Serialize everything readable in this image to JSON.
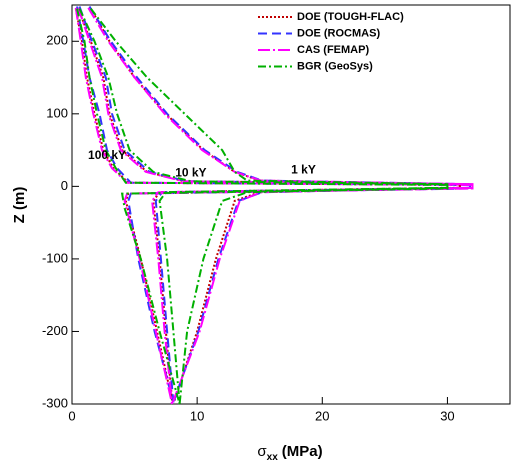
{
  "chart_data": {
    "type": "line",
    "x_label": {
      "symbol": "σ",
      "subscript": "xx",
      "unit": "(MPa)"
    },
    "y_label": "Z (m)",
    "xlim": [
      0,
      35
    ],
    "xticks": [
      0,
      10,
      20,
      30
    ],
    "ylim": [
      -300,
      250
    ],
    "yticks": [
      -300,
      -200,
      -100,
      0,
      100,
      200
    ],
    "annotations": [
      "100 kY",
      "10 kY",
      "1 kY"
    ],
    "legend": "upper-right",
    "series": [
      {
        "name": "DOE (TOUGH-FLAC)",
        "color": "#c00000",
        "dash": "2,2",
        "curves": [
          {
            "x": [
              1.5,
              3,
              5,
              7.5,
              10.5,
              13,
              15,
              31,
              31,
              15,
              13,
              11.5,
              10,
              8.2
            ],
            "y": [
              245,
              200,
              150,
              100,
              50,
              20,
              8,
              3,
              -2,
              -8,
              -20,
              -100,
              -200,
              -295
            ]
          },
          {
            "x": [
              0.5,
              1.5,
              2.5,
              3,
              4,
              6,
              9,
              31,
              31,
              7,
              6.5,
              7,
              7.5,
              8
            ],
            "y": [
              245,
              200,
              150,
              100,
              50,
              20,
              7,
              3,
              -2,
              -8,
              -20,
              -100,
              -200,
              -295
            ]
          },
          {
            "x": [
              0.3,
              0.8,
              1.2,
              1.8,
              2.5,
              3.3,
              4.5,
              31,
              31,
              4.5,
              4.3,
              5.5,
              6.8,
              8
            ],
            "y": [
              245,
              200,
              150,
              100,
              50,
              25,
              5,
              2,
              -3,
              -10,
              -20,
              -100,
              -200,
              -295
            ]
          }
        ]
      },
      {
        "name": "DOE (ROCMAS)",
        "color": "#3333ff",
        "dash": "9,5",
        "curves": [
          {
            "x": [
              1.4,
              3.1,
              5.2,
              7.6,
              10.6,
              13.2,
              15.2,
              31.8,
              31.8,
              15.2,
              13.3,
              11.7,
              10.1,
              8.1
            ],
            "y": [
              248,
              200,
              150,
              100,
              50,
              20,
              8,
              3,
              -2,
              -8,
              -20,
              -100,
              -200,
              -298
            ]
          },
          {
            "x": [
              0.6,
              1.6,
              2.7,
              3.2,
              4.2,
              6.2,
              9.2,
              31.8,
              31.8,
              7.2,
              6.7,
              7.1,
              7.6,
              8.1
            ],
            "y": [
              248,
              200,
              150,
              100,
              50,
              20,
              7,
              3,
              -2,
              -8,
              -20,
              -100,
              -200,
              -298
            ]
          },
          {
            "x": [
              0.4,
              0.9,
              1.4,
              2.2,
              2.8,
              3.6,
              4.7,
              31.8,
              31.8,
              4.7,
              4.5,
              5.3,
              6.6,
              8.1
            ],
            "y": [
              248,
              200,
              150,
              100,
              50,
              25,
              5,
              2,
              -3,
              -10,
              -20,
              -100,
              -200,
              -298
            ]
          }
        ]
      },
      {
        "name": "CAS (FEMAP)",
        "color": "#ff00ff",
        "dash": "12,3,2,3",
        "curves": [
          {
            "x": [
              1.3,
              2.9,
              5,
              7.4,
              10.4,
              13,
              15.1,
              32,
              32,
              15.1,
              13.4,
              11.8,
              10.2,
              8
            ],
            "y": [
              246,
              200,
              150,
              100,
              50,
              20,
              8,
              3,
              -2,
              -8,
              -20,
              -100,
              -200,
              -300
            ]
          },
          {
            "x": [
              0.5,
              1.4,
              2.4,
              2.9,
              3.9,
              5.9,
              8.9,
              32,
              32,
              6.9,
              6.4,
              6.9,
              7.4,
              8
            ],
            "y": [
              246,
              200,
              150,
              100,
              50,
              20,
              7,
              3,
              -2,
              -8,
              -20,
              -100,
              -200,
              -300
            ]
          },
          {
            "x": [
              0.3,
              0.7,
              1.1,
              1.7,
              2.4,
              3.2,
              4.4,
              32,
              32,
              4.4,
              4.2,
              5.4,
              6.7,
              8
            ],
            "y": [
              246,
              200,
              150,
              100,
              50,
              25,
              5,
              2,
              -3,
              -10,
              -20,
              -100,
              -200,
              -300
            ]
          }
        ]
      },
      {
        "name": "BGR (GeoSys)",
        "color": "#00b000",
        "dash": "8,3,2,3",
        "curves": [
          {
            "x": [
              1.5,
              3.5,
              6,
              9,
              12,
              13,
              14,
              30,
              30,
              14,
              12,
              10.5,
              9.2,
              8.6
            ],
            "y": [
              245,
              200,
              150,
              100,
              50,
              20,
              8,
              3,
              -2,
              -8,
              -20,
              -100,
              -200,
              -300
            ]
          },
          {
            "x": [
              0.6,
              1.8,
              2.9,
              3.6,
              4.6,
              6.5,
              9.5,
              30,
              30,
              7.5,
              7,
              7.6,
              8.1,
              8.6
            ],
            "y": [
              245,
              200,
              150,
              100,
              50,
              20,
              7,
              3,
              -2,
              -8,
              -20,
              -100,
              -200,
              -300
            ]
          },
          {
            "x": [
              0.4,
              1,
              1.4,
              2,
              2.7,
              3.5,
              4.3,
              30,
              30,
              4,
              4.2,
              5.5,
              7,
              8.6
            ],
            "y": [
              245,
              200,
              150,
              100,
              50,
              25,
              5,
              2,
              -3,
              -10,
              -30,
              -100,
              -200,
              -300
            ]
          }
        ]
      }
    ]
  }
}
